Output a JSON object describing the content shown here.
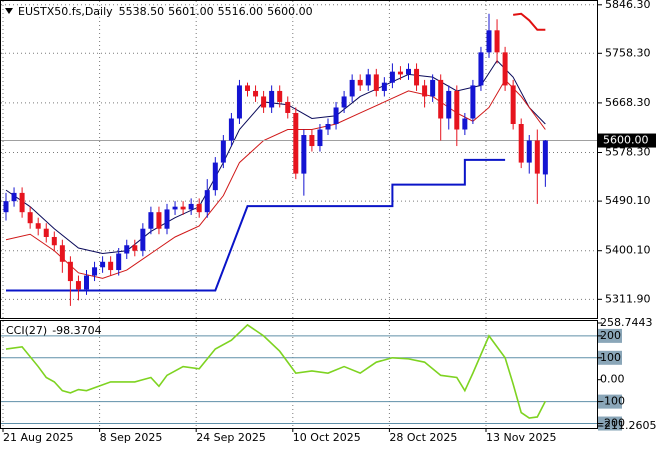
{
  "chart_data": [
    {
      "type": "candlestick",
      "symbol": "EUSTX50.fs,Daily",
      "header_values": [
        {
          "value": 5538.5,
          "label": "5538.50"
        },
        {
          "value": 5601,
          "label": "5601.00"
        },
        {
          "value": 5516,
          "label": "5516.00"
        },
        {
          "value": 5600,
          "label": "5600.00"
        }
      ],
      "categories": [
        "21 Aug 2025",
        null,
        null,
        null,
        null,
        null,
        null,
        null,
        null,
        null,
        null,
        null,
        "8 Sep 2025",
        null,
        null,
        null,
        null,
        null,
        null,
        null,
        null,
        null,
        null,
        null,
        "24 Sep 2025",
        null,
        null,
        null,
        null,
        null,
        null,
        null,
        null,
        null,
        null,
        null,
        "10 Oct 2025",
        null,
        null,
        null,
        null,
        null,
        null,
        null,
        null,
        null,
        null,
        null,
        "28 Oct 2025",
        null,
        null,
        null,
        null,
        null,
        null,
        null,
        null,
        null,
        null,
        null,
        "13 Nov 2025",
        null,
        null,
        null,
        null,
        null,
        null,
        null
      ],
      "open": [
        5470,
        5490,
        5505,
        5470,
        5450,
        5440,
        5425,
        5410,
        5380,
        5345,
        5330,
        5355,
        5370,
        5380,
        5365,
        5395,
        5410,
        5400,
        5440,
        5470,
        5440,
        5475,
        5480,
        5475,
        5485,
        5470,
        5510,
        5560,
        5600,
        5640,
        5700,
        5690,
        5680,
        5660,
        5690,
        5670,
        5650,
        5540,
        5610,
        5590,
        5620,
        5630,
        5660,
        5680,
        5710,
        5700,
        5720,
        5690,
        5705,
        5725,
        5720,
        5730,
        5700,
        5680,
        5710,
        5640,
        5690,
        5620,
        5640,
        5700,
        5760,
        5800,
        5760,
        5700,
        5630,
        5560,
        5600,
        5538.5
      ],
      "high": [
        5505,
        5515,
        5515,
        5480,
        5460,
        5450,
        5435,
        5420,
        5390,
        5355,
        5365,
        5380,
        5390,
        5390,
        5405,
        5420,
        5420,
        5450,
        5480,
        5480,
        5485,
        5490,
        5490,
        5495,
        5495,
        5530,
        5570,
        5610,
        5650,
        5710,
        5705,
        5700,
        5690,
        5700,
        5700,
        5680,
        5660,
        5620,
        5620,
        5630,
        5640,
        5670,
        5690,
        5720,
        5720,
        5730,
        5730,
        5715,
        5740,
        5735,
        5740,
        5740,
        5710,
        5720,
        5720,
        5700,
        5700,
        5650,
        5710,
        5770,
        5830,
        5820,
        5770,
        5710,
        5640,
        5610,
        5620,
        5601
      ],
      "low": [
        5455,
        5480,
        5460,
        5440,
        5428,
        5415,
        5400,
        5360,
        5300,
        5310,
        5320,
        5345,
        5360,
        5355,
        5355,
        5385,
        5390,
        5390,
        5430,
        5430,
        5430,
        5465,
        5465,
        5465,
        5460,
        5460,
        5500,
        5550,
        5590,
        5630,
        5680,
        5670,
        5650,
        5650,
        5660,
        5640,
        5530,
        5500,
        5580,
        5580,
        5610,
        5620,
        5650,
        5670,
        5690,
        5690,
        5680,
        5680,
        5695,
        5710,
        5710,
        5690,
        5660,
        5670,
        5600,
        5620,
        5590,
        5610,
        5630,
        5690,
        5750,
        5740,
        5690,
        5620,
        5550,
        5540,
        5485,
        5516
      ],
      "close": [
        5490,
        5505,
        5470,
        5450,
        5440,
        5425,
        5410,
        5380,
        5345,
        5330,
        5355,
        5370,
        5380,
        5365,
        5395,
        5410,
        5400,
        5440,
        5470,
        5440,
        5475,
        5480,
        5475,
        5485,
        5470,
        5510,
        5560,
        5600,
        5640,
        5700,
        5690,
        5680,
        5660,
        5690,
        5670,
        5650,
        5540,
        5610,
        5590,
        5620,
        5630,
        5660,
        5680,
        5710,
        5700,
        5720,
        5690,
        5705,
        5725,
        5720,
        5730,
        5700,
        5680,
        5710,
        5640,
        5690,
        5620,
        5640,
        5700,
        5760,
        5800,
        5760,
        5700,
        5630,
        5560,
        5600,
        5540,
        5600
      ],
      "up_color": "#1414d2",
      "down_color": "#e6141e",
      "ylim": [
        5278,
        5855
      ],
      "yticks": [
        {
          "value": 5846.3,
          "label": "5846.30"
        },
        {
          "value": 5758.3,
          "label": "5758.30"
        },
        {
          "value": 5668.3,
          "label": "5668.30"
        },
        {
          "value": 5578.3,
          "label": "5578.30"
        },
        {
          "value": 5490.1,
          "label": "5490.10"
        },
        {
          "value": 5400.1,
          "label": "5400.10"
        },
        {
          "value": 5311.9,
          "label": "5311.90"
        }
      ],
      "last_price": {
        "value": 5600,
        "label": "5600.00"
      },
      "grid": true,
      "lines": [
        {
          "color": "#0a0a5a",
          "width": 1,
          "x": [
            0,
            3,
            6,
            9,
            12,
            15,
            18,
            21,
            24,
            27,
            29,
            32,
            35,
            38,
            41,
            44,
            47,
            50,
            53,
            56,
            59,
            61,
            63,
            65,
            67
          ],
          "values": [
            5510,
            5480,
            5440,
            5405,
            5395,
            5400,
            5435,
            5460,
            5480,
            5560,
            5620,
            5670,
            5665,
            5640,
            5645,
            5680,
            5700,
            5720,
            5715,
            5690,
            5700,
            5745,
            5715,
            5660,
            5630
          ]
        },
        {
          "color": "#d01818",
          "width": 1,
          "x": [
            0,
            3,
            6,
            9,
            12,
            15,
            18,
            21,
            24,
            27,
            29,
            32,
            35,
            38,
            41,
            44,
            47,
            50,
            53,
            56,
            58,
            60,
            62,
            64,
            66,
            67
          ],
          "values": [
            5420,
            5430,
            5400,
            5360,
            5350,
            5365,
            5395,
            5425,
            5445,
            5500,
            5560,
            5600,
            5620,
            5620,
            5630,
            5650,
            5670,
            5690,
            5680,
            5650,
            5635,
            5660,
            5710,
            5680,
            5640,
            5620
          ]
        },
        {
          "color": "#0a14c8",
          "width": 2,
          "x": [
            0,
            26,
            30,
            48,
            48,
            57,
            57,
            62
          ],
          "values": [
            5328,
            5328,
            5481,
            5481,
            5520,
            5520,
            5565,
            5565
          ]
        },
        {
          "color": "#e01010",
          "width": 2,
          "x": [
            63,
            64,
            65,
            66,
            67
          ],
          "values": [
            5828,
            5830,
            5818,
            5801,
            5801
          ]
        }
      ]
    },
    {
      "type": "line",
      "name": "CCI(27)",
      "last_value": -98.3704,
      "color": "#7ed321",
      "ylim": [
        -211.2605,
        258.7443
      ],
      "yticks": [
        258.7443,
        200,
        100,
        {
          "value": 0,
          "label": "0.00"
        },
        -100,
        -200,
        -211.2605
      ],
      "levels": [
        200,
        100,
        -100,
        -200
      ],
      "x": [
        0,
        2,
        4,
        5,
        6,
        7,
        8,
        9,
        10,
        13,
        16,
        18,
        19,
        20,
        22,
        24,
        26,
        28,
        30,
        32,
        34,
        36,
        38,
        40,
        42,
        44,
        46,
        48,
        50,
        52,
        54,
        56,
        57,
        58,
        60,
        62,
        63,
        64,
        65,
        66,
        67
      ],
      "values": [
        140,
        150,
        60,
        10,
        -10,
        -50,
        -60,
        -45,
        -50,
        -10,
        -10,
        10,
        -30,
        20,
        60,
        50,
        140,
        180,
        250,
        200,
        130,
        30,
        40,
        30,
        60,
        30,
        80,
        100,
        95,
        80,
        20,
        10,
        -50,
        30,
        200,
        100,
        -20,
        -150,
        -175,
        -170,
        -98.3704
      ]
    }
  ]
}
